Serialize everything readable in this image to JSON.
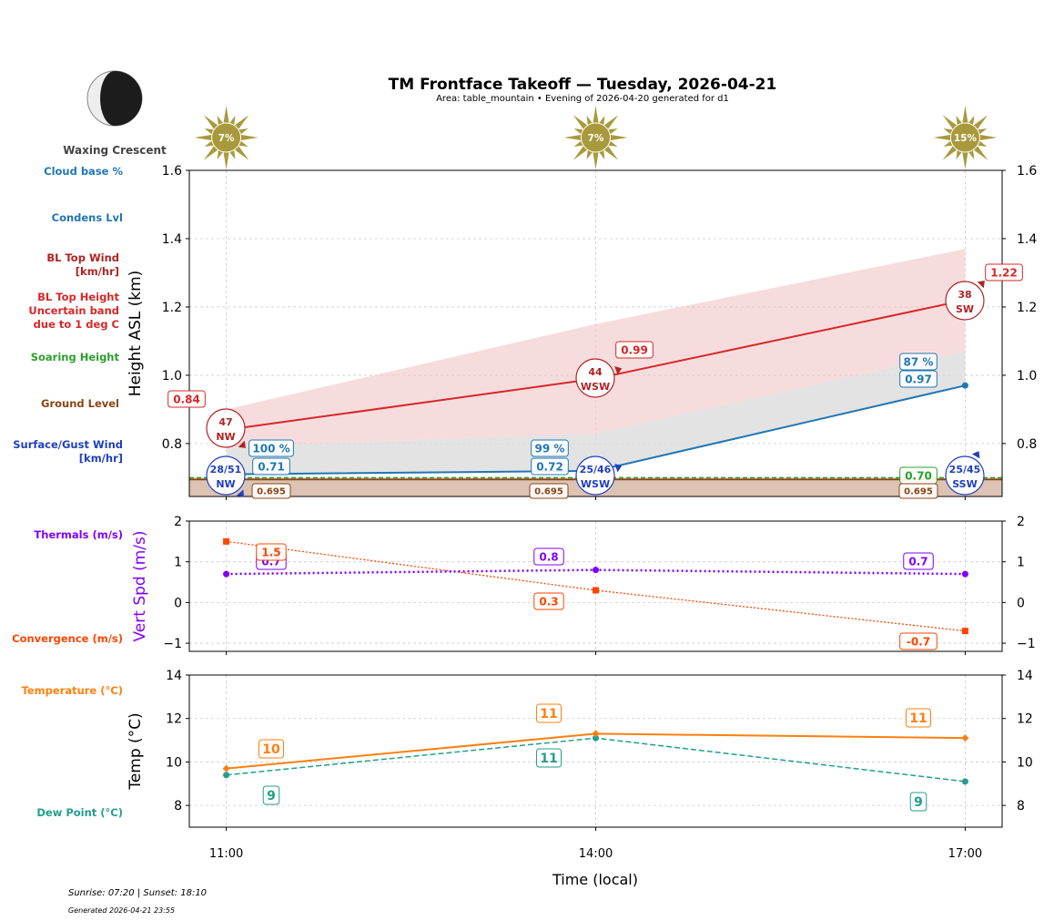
{
  "header": {
    "title": "TM Frontface Takeoff — Tuesday, 2026-04-21",
    "subtitle": "Area: table_mountain • Evening of 2026-04-20 generated for d1",
    "moon_phase": "Waxing Crescent",
    "moon_icon": "waxing-crescent-moon-icon"
  },
  "footer": {
    "sun_times": "Sunrise: 07:20 | Sunset: 18:10",
    "generated": "Generated 2026-04-21 23:55"
  },
  "side_labels": {
    "cloud_base": "Cloud base %",
    "condens": "Condens Lvl",
    "bl_top_wind": [
      "BL Top Wind",
      "[km/hr]"
    ],
    "bl_top_height": [
      "BL Top Height",
      "Uncertain band",
      "due to 1 deg C"
    ],
    "soaring": "Soaring Height",
    "ground": "Ground Level",
    "surface_wind": [
      "Surface/Gust Wind",
      "[km/hr]"
    ],
    "thermals": "Thermals (m/s)",
    "convergence": "Convergence (m/s)",
    "temperature": "Temperature (°C)",
    "dew_point": "Dew Point (°C)"
  },
  "colors": {
    "bl_top": "#d62728",
    "bl_wind": "#b22222",
    "band": "#f2c4c6",
    "cloud": "#1f77b4",
    "soaring": "#2ca02c",
    "ground": "#8b4513",
    "ground_fill": "#dcc3b3",
    "surface_wind": "#1f3fbf",
    "thermals": "#7f00ff",
    "convergence": "#ff4500",
    "temperature": "#ff7f0e",
    "dew_point": "#229e8f",
    "sun": "#a89a3c"
  },
  "chart_data": [
    {
      "type": "line",
      "ylabel": "Height ASL (km)",
      "ylim": [
        0.645,
        1.6
      ],
      "yticks": [
        "0.8",
        "1.0",
        "1.2",
        "1.4",
        "1.6"
      ],
      "ytick_values": [
        0.8,
        1.0,
        1.2,
        1.4,
        1.6
      ],
      "x": [
        "11:00",
        "14:00",
        "17:00"
      ],
      "grid": true,
      "sun_percent": [
        "7%",
        "7%",
        "15%"
      ],
      "series": {
        "bl_top_height": {
          "values": [
            0.84,
            0.99,
            1.22
          ],
          "labels": [
            "0.84",
            "0.99",
            "1.22"
          ]
        },
        "bl_top_band": {
          "upper": [
            0.9,
            1.15,
            1.37
          ],
          "lower": [
            0.79,
            0.83,
            1.07
          ]
        },
        "condensation": {
          "values": [
            0.71,
            0.72,
            0.97
          ],
          "labels": [
            "0.71",
            "0.72",
            "0.97"
          ]
        },
        "cloud_base_pct": [
          "100 %",
          "99 %",
          "87 %"
        ],
        "soaring_height": {
          "values": [
            0.7,
            0.7,
            0.7
          ],
          "labels": [
            "0.70"
          ]
        },
        "ground_level": {
          "values": [
            0.695,
            0.695,
            0.695
          ],
          "labels": [
            "0.695",
            "0.695",
            "0.695"
          ]
        },
        "bl_top_wind": [
          {
            "speed": "47",
            "dir": "NW"
          },
          {
            "speed": "44",
            "dir": "WSW"
          },
          {
            "speed": "38",
            "dir": "SW"
          }
        ],
        "surface_wind": [
          {
            "speed": "28/51",
            "dir": "NW"
          },
          {
            "speed": "25/46",
            "dir": "WSW"
          },
          {
            "speed": "25/45",
            "dir": "SSW"
          }
        ]
      }
    },
    {
      "type": "line",
      "ylabel": "Vert Spd (m/s)",
      "ylim": [
        -1.2,
        2
      ],
      "yticks": [
        "−1",
        "0",
        "1",
        "2"
      ],
      "ytick_values": [
        -1,
        0,
        1,
        2
      ],
      "x": [
        "11:00",
        "14:00",
        "17:00"
      ],
      "grid": true,
      "series": {
        "thermals": {
          "values": [
            0.7,
            0.8,
            0.7
          ],
          "labels": [
            "0.7",
            "0.8",
            "0.7"
          ]
        },
        "convergence": {
          "values": [
            1.5,
            0.3,
            -0.7
          ],
          "labels": [
            "1.5",
            "0.3",
            "-0.7"
          ]
        }
      }
    },
    {
      "type": "line",
      "ylabel": "Temp (°C)",
      "xlabel": "Time (local)",
      "ylim": [
        7,
        14
      ],
      "yticks": [
        "8",
        "10",
        "12",
        "14"
      ],
      "ytick_values": [
        8,
        10,
        12,
        14
      ],
      "x": [
        "11:00",
        "14:00",
        "17:00"
      ],
      "grid": true,
      "series": {
        "temperature": {
          "values": [
            9.7,
            11.3,
            11.1
          ],
          "labels": [
            "10",
            "11",
            "11"
          ]
        },
        "dew_point": {
          "values": [
            9.4,
            11.1,
            9.1
          ],
          "labels": [
            "9",
            "11",
            "9"
          ]
        }
      }
    }
  ]
}
